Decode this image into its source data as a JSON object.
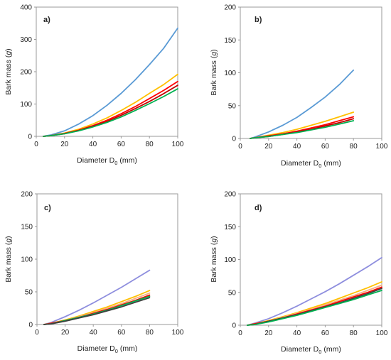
{
  "chart_data": [
    {
      "type": "line",
      "panel_label": "a)",
      "xlabel_main": "Diameter D",
      "xlabel_sub": "0",
      "xlabel_unit": " (mm)",
      "ylabel_prefix": "Bark mass (",
      "ylabel_var": "g",
      "ylabel_suffix": ")",
      "xlim": [
        0,
        100
      ],
      "ylim": [
        0,
        400
      ],
      "xticks": [
        0,
        20,
        40,
        60,
        80,
        100
      ],
      "yticks": [
        0,
        100,
        200,
        300,
        400
      ],
      "grid": false,
      "legend": "none",
      "series": [
        {
          "color": "#5b9bd5",
          "x": [
            6,
            10,
            20,
            30,
            40,
            50,
            60,
            70,
            80,
            90,
            100
          ],
          "y": [
            1,
            4,
            17,
            38,
            64,
            96,
            133,
            175,
            222,
            272,
            335
          ]
        },
        {
          "color": "#ffc000",
          "x": [
            5,
            10,
            20,
            30,
            40,
            50,
            60,
            70,
            80,
            90,
            100
          ],
          "y": [
            0,
            2,
            10,
            22,
            38,
            57,
            80,
            105,
            133,
            160,
            192
          ]
        },
        {
          "color": "#ff0000",
          "x": [
            5,
            10,
            20,
            30,
            40,
            50,
            60,
            70,
            80,
            90,
            100
          ],
          "y": [
            0,
            2,
            9,
            19,
            33,
            50,
            70,
            92,
            117,
            142,
            170
          ]
        },
        {
          "color": "#c00000",
          "x": [
            5,
            10,
            20,
            30,
            40,
            50,
            60,
            70,
            80,
            90,
            100
          ],
          "y": [
            0,
            2,
            8,
            18,
            31,
            46,
            65,
            86,
            108,
            132,
            158
          ]
        },
        {
          "color": "#00b050",
          "x": [
            5,
            10,
            20,
            30,
            40,
            50,
            60,
            70,
            80,
            90,
            100
          ],
          "y": [
            0,
            2,
            8,
            17,
            29,
            43,
            60,
            80,
            101,
            123,
            147
          ]
        }
      ]
    },
    {
      "type": "line",
      "panel_label": "b)",
      "xlabel_main": "Diameter D",
      "xlabel_sub": "0",
      "xlabel_unit": " (mm)",
      "ylabel_prefix": "Bark mass (",
      "ylabel_var": "g",
      "ylabel_suffix": ")",
      "xlim": [
        0,
        100
      ],
      "ylim": [
        0,
        200
      ],
      "xticks": [
        0,
        20,
        40,
        60,
        80,
        100
      ],
      "yticks": [
        0,
        50,
        100,
        150,
        200
      ],
      "grid": false,
      "legend": "none",
      "series": [
        {
          "color": "#5b9bd5",
          "x": [
            7,
            10,
            20,
            30,
            40,
            50,
            60,
            70,
            80
          ],
          "y": [
            0,
            2,
            10,
            20,
            32,
            47,
            63,
            82,
            104
          ]
        },
        {
          "color": "#ffc000",
          "x": [
            7,
            10,
            20,
            30,
            40,
            50,
            60,
            70,
            80
          ],
          "y": [
            0,
            1,
            5,
            9,
            14,
            20,
            26,
            33,
            40
          ]
        },
        {
          "color": "#ff0000",
          "x": [
            7,
            10,
            20,
            30,
            40,
            50,
            60,
            70,
            80
          ],
          "y": [
            0,
            1,
            4,
            7,
            11,
            16,
            21,
            27,
            33
          ]
        },
        {
          "color": "#c00000",
          "x": [
            7,
            10,
            20,
            30,
            40,
            50,
            60,
            70,
            80
          ],
          "y": [
            0,
            1,
            3,
            6,
            10,
            14,
            19,
            24,
            30
          ]
        },
        {
          "color": "#00b050",
          "x": [
            7,
            10,
            20,
            30,
            40,
            50,
            60,
            70,
            80
          ],
          "y": [
            0,
            1,
            3,
            6,
            9,
            13,
            17,
            22,
            27
          ]
        }
      ]
    },
    {
      "type": "line",
      "panel_label": "c)",
      "xlabel_main": "Diameter D",
      "xlabel_sub": "0",
      "xlabel_unit": " (mm)",
      "ylabel_prefix": "Bark mass (",
      "ylabel_var": "g",
      "ylabel_suffix": ")",
      "xlim": [
        0,
        100
      ],
      "ylim": [
        0,
        200
      ],
      "xticks": [
        0,
        20,
        40,
        60,
        80,
        100
      ],
      "yticks": [
        0,
        50,
        100,
        150,
        200
      ],
      "grid": false,
      "legend": "none",
      "series": [
        {
          "color": "#8e8ede",
          "x": [
            5,
            10,
            20,
            30,
            40,
            50,
            60,
            70,
            80
          ],
          "y": [
            0,
            3,
            12,
            22,
            33,
            45,
            57,
            70,
            83
          ]
        },
        {
          "color": "#ffc000",
          "x": [
            5,
            10,
            20,
            30,
            40,
            50,
            60,
            70,
            80
          ],
          "y": [
            0,
            2,
            7,
            13,
            20,
            27,
            35,
            43,
            52
          ]
        },
        {
          "color": "#f4b183",
          "x": [
            5,
            10,
            20,
            30,
            40,
            50,
            60,
            70,
            80
          ],
          "y": [
            0,
            2,
            6,
            12,
            18,
            25,
            32,
            40,
            48
          ]
        },
        {
          "color": "#ff0000",
          "x": [
            5,
            10,
            20,
            30,
            40,
            50,
            60,
            70,
            80
          ],
          "y": [
            0,
            2,
            6,
            11,
            17,
            23,
            30,
            37,
            45
          ]
        },
        {
          "color": "#00b050",
          "x": [
            5,
            10,
            20,
            30,
            40,
            50,
            60,
            70,
            80
          ],
          "y": [
            0,
            1,
            6,
            11,
            16,
            22,
            29,
            36,
            43
          ]
        },
        {
          "color": "#3f3f3f",
          "x": [
            5,
            10,
            20,
            30,
            40,
            50,
            60,
            70,
            80
          ],
          "y": [
            0,
            1,
            5,
            10,
            15,
            21,
            27,
            34,
            41
          ]
        }
      ]
    },
    {
      "type": "line",
      "panel_label": "d)",
      "xlabel_main": "Diameter D",
      "xlabel_sub": "0",
      "xlabel_unit": " (mm)",
      "ylabel_prefix": "Bark mass (",
      "ylabel_var": "g",
      "ylabel_suffix": ")",
      "xlim": [
        0,
        100
      ],
      "ylim": [
        0,
        200
      ],
      "xticks": [
        0,
        20,
        40,
        60,
        80,
        100
      ],
      "yticks": [
        0,
        50,
        100,
        150,
        200
      ],
      "grid": false,
      "legend": "none",
      "series": [
        {
          "color": "#8e8ede",
          "x": [
            5,
            10,
            20,
            30,
            40,
            50,
            60,
            70,
            80,
            90,
            100
          ],
          "y": [
            0,
            3,
            10,
            19,
            29,
            40,
            51,
            63,
            76,
            89,
            103
          ]
        },
        {
          "color": "#ffc000",
          "x": [
            5,
            10,
            20,
            30,
            40,
            50,
            60,
            70,
            80,
            90,
            100
          ],
          "y": [
            0,
            2,
            7,
            13,
            19,
            26,
            33,
            41,
            49,
            57,
            66
          ]
        },
        {
          "color": "#f4b183",
          "x": [
            5,
            10,
            20,
            30,
            40,
            50,
            60,
            70,
            80,
            90,
            100
          ],
          "y": [
            0,
            2,
            6,
            12,
            18,
            24,
            31,
            38,
            45,
            53,
            61
          ]
        },
        {
          "color": "#ff0000",
          "x": [
            5,
            10,
            20,
            30,
            40,
            50,
            60,
            70,
            80,
            90,
            100
          ],
          "y": [
            0,
            2,
            6,
            11,
            17,
            23,
            29,
            36,
            43,
            50,
            58
          ]
        },
        {
          "color": "#3f3f3f",
          "x": [
            5,
            10,
            20,
            30,
            40,
            50,
            60,
            70,
            80,
            90,
            100
          ],
          "y": [
            0,
            1,
            6,
            11,
            16,
            22,
            28,
            34,
            41,
            48,
            56
          ]
        },
        {
          "color": "#00b050",
          "x": [
            5,
            10,
            20,
            30,
            40,
            50,
            60,
            70,
            80,
            90,
            100
          ],
          "y": [
            0,
            1,
            5,
            10,
            15,
            21,
            27,
            33,
            39,
            46,
            53
          ]
        }
      ]
    }
  ]
}
